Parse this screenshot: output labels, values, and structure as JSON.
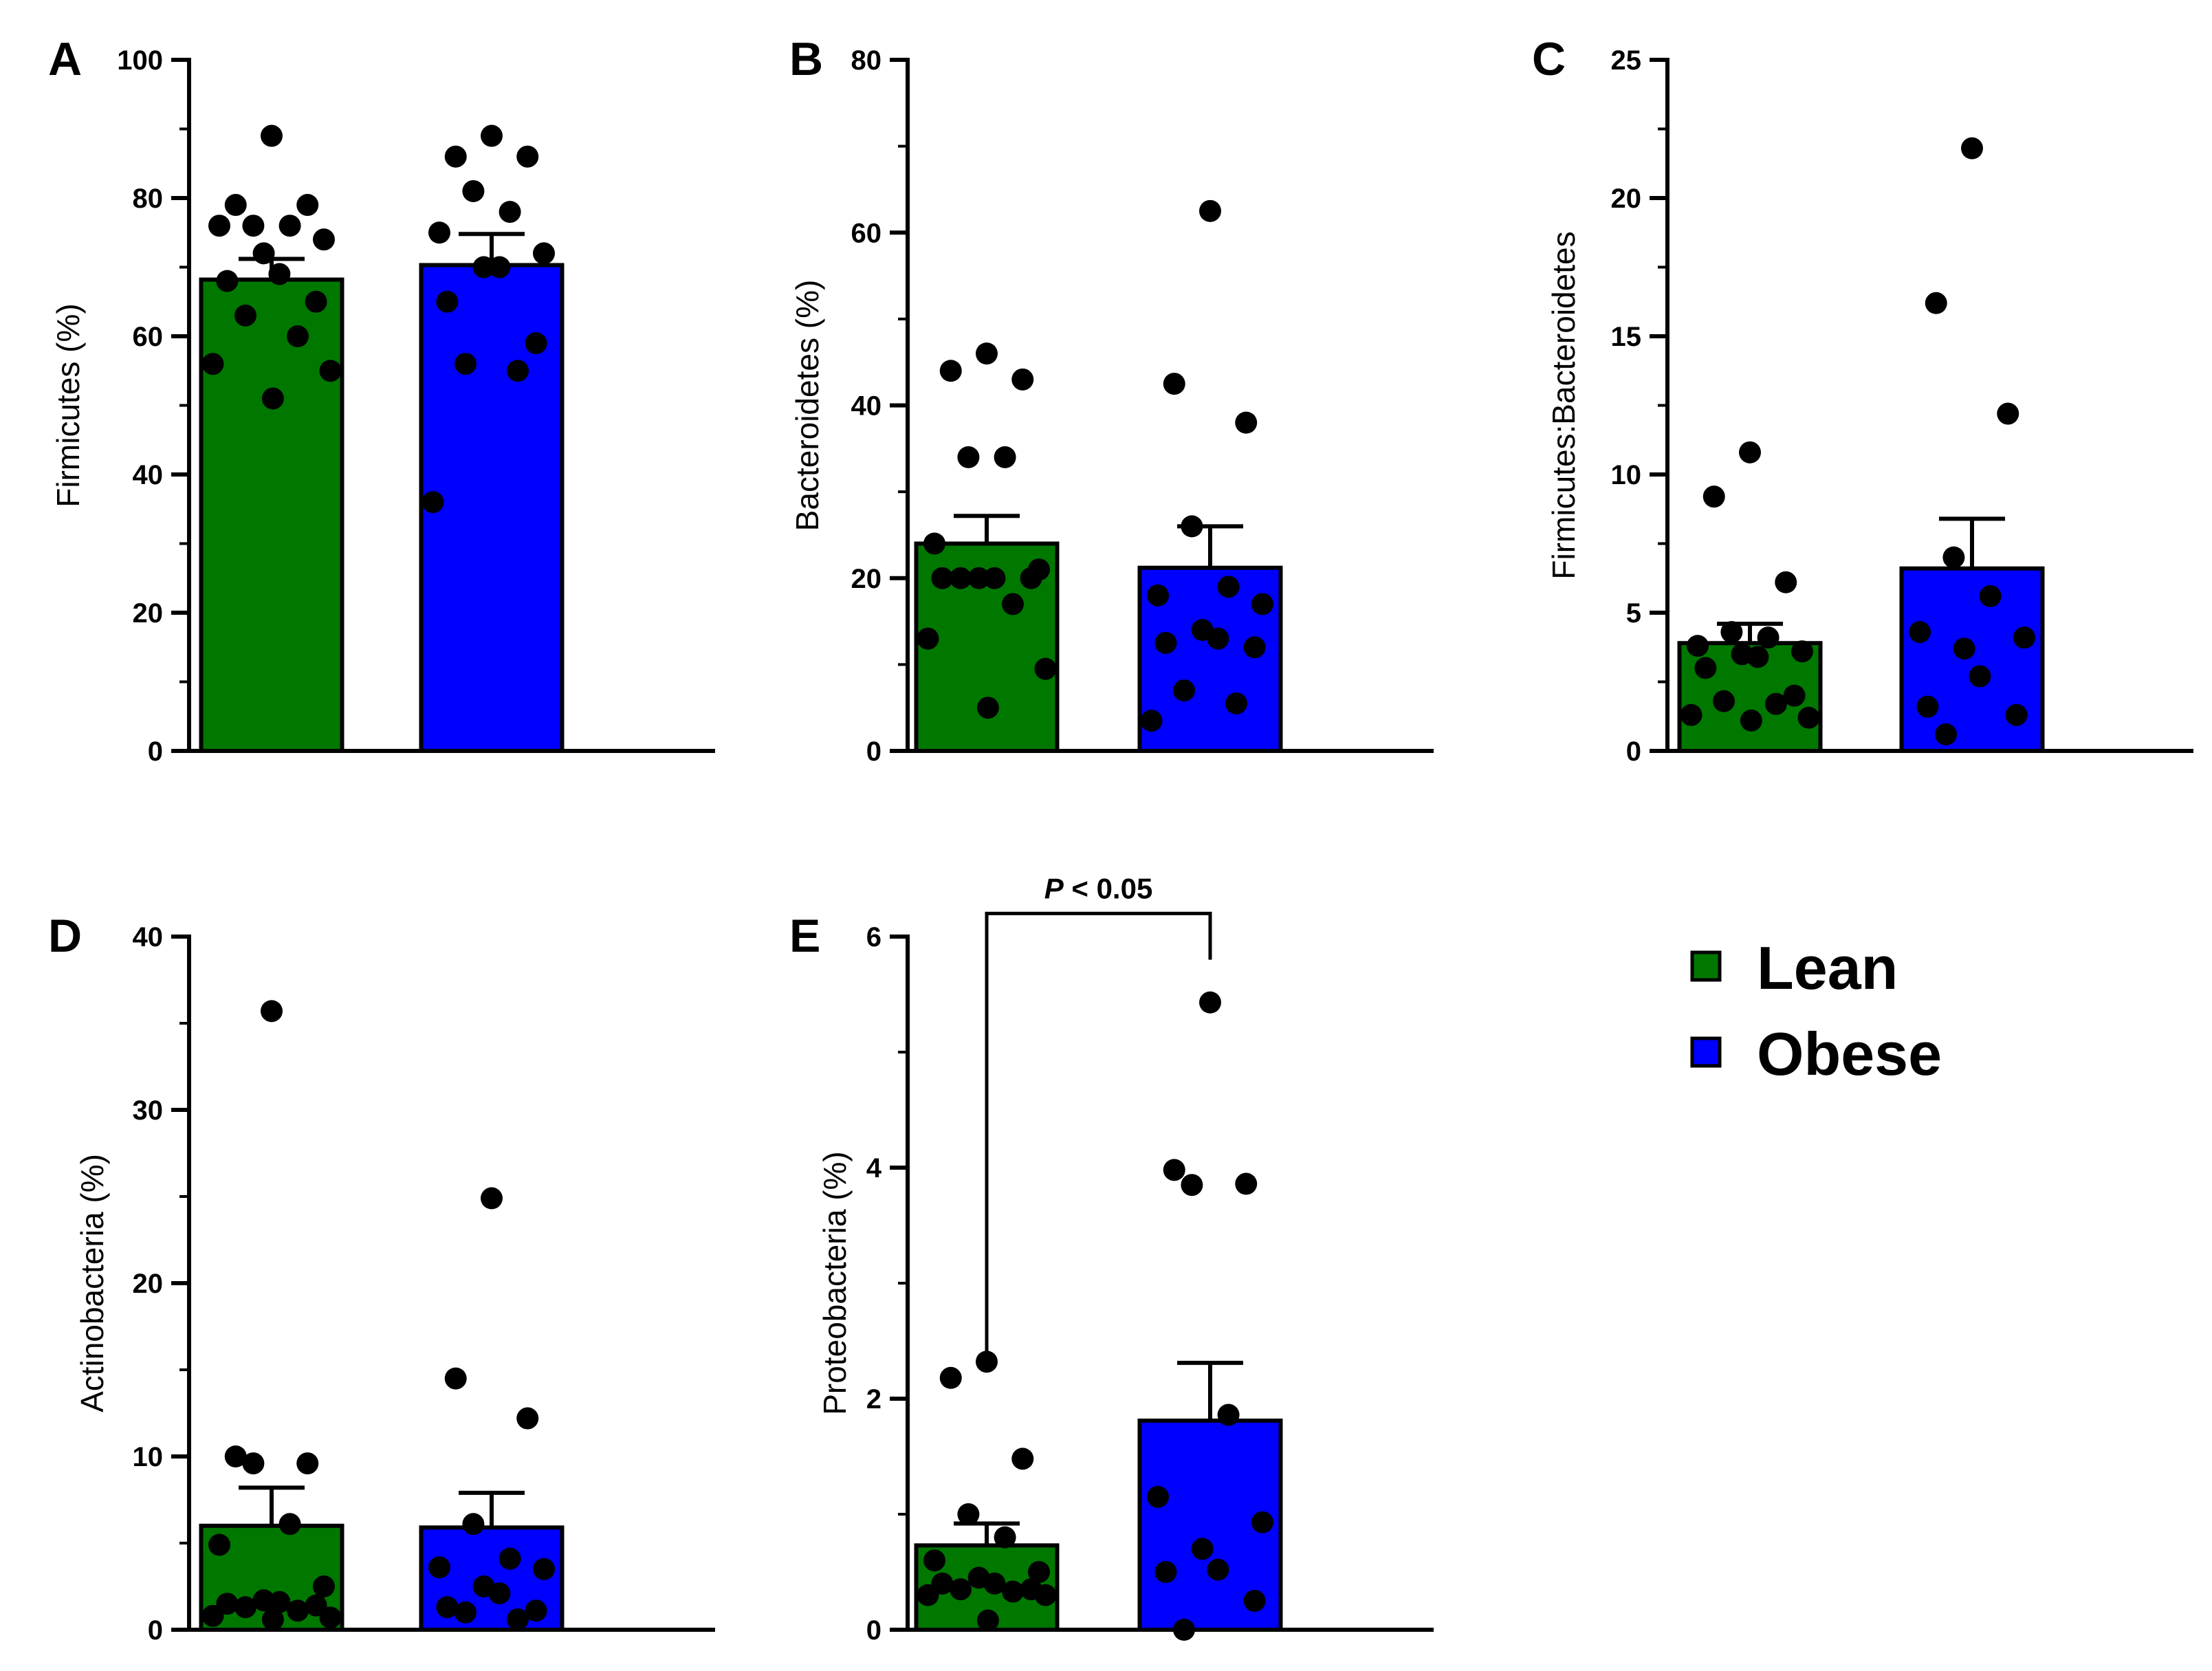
{
  "figure": {
    "legend": [
      {
        "label": "Lean",
        "color": "#007800"
      },
      {
        "label": "Obese",
        "color": "#0000ff"
      }
    ]
  },
  "chart_data": [
    {
      "type": "bar",
      "panel": "A",
      "ylabel": "Firmicutes (%)",
      "ylim": [
        0,
        100
      ],
      "yticks": [
        "0",
        "20",
        "40",
        "60",
        "80",
        "100"
      ],
      "ytick_values": [
        0,
        20,
        40,
        60,
        80,
        100
      ],
      "minor_step": 10,
      "categories": [
        "Lean",
        "Obese"
      ],
      "series": [
        {
          "name": "Lean",
          "color": "#007800",
          "mean": 68.2,
          "sem": 3.0,
          "points": [
            89,
            79,
            79,
            76,
            76,
            76,
            74,
            72,
            69,
            68,
            65,
            63,
            60,
            56,
            55,
            51
          ]
        },
        {
          "name": "Obese",
          "color": "#0000ff",
          "mean": 70.3,
          "sem": 4.5,
          "points": [
            89,
            86,
            86,
            81,
            78,
            75,
            72,
            70,
            70,
            65,
            59,
            56,
            55,
            36
          ]
        }
      ]
    },
    {
      "type": "bar",
      "panel": "B",
      "ylabel": "Bacteroidetes (%)",
      "ylim": [
        0,
        80
      ],
      "yticks": [
        "0",
        "20",
        "40",
        "60",
        "80"
      ],
      "ytick_values": [
        0,
        20,
        40,
        60,
        80
      ],
      "minor_step": 10,
      "categories": [
        "Lean",
        "Obese"
      ],
      "series": [
        {
          "name": "Lean",
          "color": "#007800",
          "mean": 24.0,
          "sem": 3.2,
          "points": [
            46,
            44,
            43,
            34,
            34,
            24,
            21,
            20,
            20,
            20,
            20,
            20,
            17,
            13,
            9.5,
            5
          ]
        },
        {
          "name": "Obese",
          "color": "#0000ff",
          "mean": 21.2,
          "sem": 4.8,
          "points": [
            62.5,
            42.5,
            38,
            26,
            19,
            18,
            17,
            14,
            13,
            12.5,
            12,
            7,
            5.5,
            3.5
          ]
        }
      ]
    },
    {
      "type": "bar",
      "panel": "C",
      "ylabel": "Firmicutes:Bacteroidetes",
      "ylim": [
        0,
        25
      ],
      "yticks": [
        "0",
        "5",
        "10",
        "15",
        "20",
        "25"
      ],
      "ytick_values": [
        0,
        5,
        10,
        15,
        20,
        25
      ],
      "minor_step": 2.5,
      "categories": [
        "Lean",
        "Obese"
      ],
      "series": [
        {
          "name": "Lean",
          "color": "#007800",
          "mean": 3.9,
          "sem": 0.7,
          "points": [
            10.8,
            9.2,
            6.1,
            4.3,
            4.1,
            3.8,
            3.6,
            3.5,
            3.4,
            3.0,
            2.0,
            1.8,
            1.7,
            1.3,
            1.2,
            1.1
          ]
        },
        {
          "name": "Obese",
          "color": "#0000ff",
          "mean": 6.6,
          "sem": 1.8,
          "points": [
            21.8,
            16.2,
            12.2,
            7.0,
            5.6,
            4.3,
            4.1,
            3.7,
            2.7,
            1.6,
            1.3,
            0.6
          ]
        }
      ]
    },
    {
      "type": "bar",
      "panel": "D",
      "ylabel": "Actinobacteria (%)",
      "ylim": [
        0,
        40
      ],
      "yticks": [
        "0",
        "10",
        "20",
        "30",
        "40"
      ],
      "ytick_values": [
        0,
        10,
        20,
        30,
        40
      ],
      "minor_step": 5,
      "categories": [
        "Lean",
        "Obese"
      ],
      "series": [
        {
          "name": "Lean",
          "color": "#007800",
          "mean": 6.0,
          "sem": 2.2,
          "points": [
            35.7,
            10,
            9.6,
            9.6,
            6.1,
            4.9,
            2.5,
            1.7,
            1.6,
            1.5,
            1.4,
            1.3,
            1.1,
            0.8,
            0.7,
            0.6
          ]
        },
        {
          "name": "Obese",
          "color": "#0000ff",
          "mean": 5.9,
          "sem": 2.0,
          "points": [
            24.9,
            14.5,
            12.2,
            6.1,
            4.1,
            3.6,
            3.5,
            2.5,
            2.1,
            1.3,
            1.1,
            1.0,
            0.6
          ]
        }
      ]
    },
    {
      "type": "bar",
      "panel": "E",
      "ylabel": "Proteobacteria (%)",
      "ylim": [
        0,
        6
      ],
      "yticks": [
        "0",
        "2",
        "4",
        "6"
      ],
      "ytick_values": [
        0,
        2,
        4,
        6
      ],
      "minor_step": 1,
      "categories": [
        "Lean",
        "Obese"
      ],
      "series": [
        {
          "name": "Lean",
          "color": "#007800",
          "mean": 0.73,
          "sem": 0.19,
          "points": [
            2.32,
            2.18,
            1.48,
            1.0,
            0.8,
            0.6,
            0.5,
            0.45,
            0.4,
            0.4,
            0.35,
            0.35,
            0.33,
            0.3,
            0.3,
            0.08
          ]
        },
        {
          "name": "Obese",
          "color": "#0000ff",
          "mean": 1.81,
          "sem": 0.5,
          "points": [
            5.43,
            3.98,
            3.86,
            3.85,
            1.86,
            1.15,
            0.93,
            0.7,
            0.52,
            0.5,
            0.25,
            0.0
          ]
        }
      ],
      "annotation": {
        "text": "P < 0.05",
        "bracket_value": 6.2,
        "left_value": 2.4,
        "right_value": 5.8
      }
    }
  ]
}
